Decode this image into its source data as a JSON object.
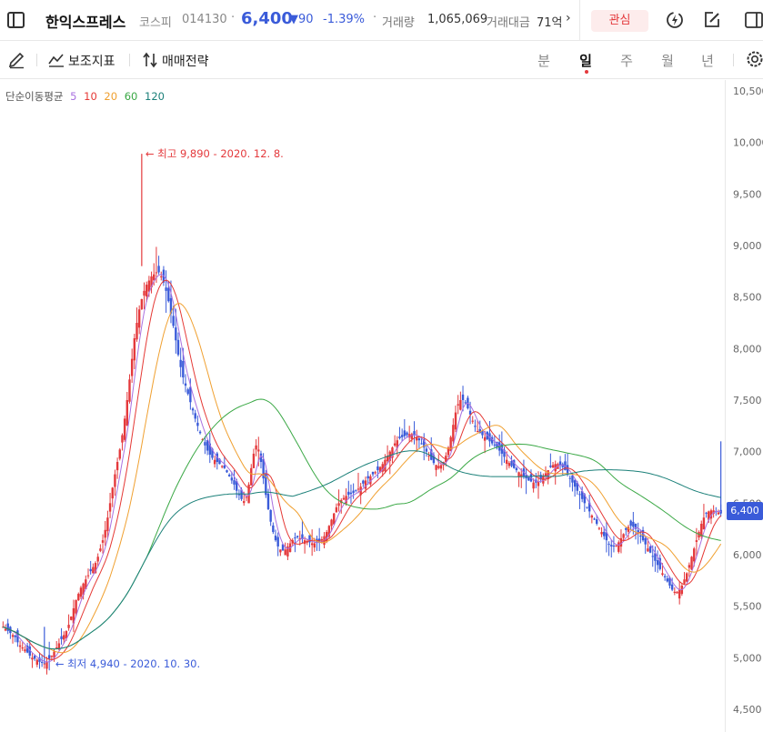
{
  "header": {
    "stock_name": "한익스프레스",
    "market": "코스피",
    "code": "014130",
    "price": "6,400",
    "change": "▼90",
    "change_pct": "-1.39%",
    "volume_label": "거래량",
    "volume_value": "1,065,069",
    "turnover_label": "거래대금",
    "turnover_value": "71억",
    "more_icon": "chevron-right-icon",
    "watch_label": "관심",
    "icons": [
      "sidebar-toggle-icon",
      "lightning-icon",
      "edit-icon",
      "panel-icon"
    ]
  },
  "toolbar": {
    "draw_icon": "pencil-icon",
    "indicator_label": "보조지표",
    "strategy_label": "매매전략",
    "periods": [
      "분",
      "일",
      "주",
      "월",
      "년"
    ],
    "active_period": "일",
    "settings_icon": "gear-icon"
  },
  "colors": {
    "up": "#e4393c",
    "down": "#3a5bd9",
    "ma5": "#a970e0",
    "ma10": "#e53935",
    "ma20": "#f0a030",
    "ma60": "#3aa845",
    "ma120": "#1b8079"
  },
  "chart_data": {
    "type": "candlestick",
    "indicator_label": "단순이동평균",
    "ma_periods": [
      "5",
      "10",
      "20",
      "60",
      "120"
    ],
    "y_ticks": [
      "10,500",
      "10,000",
      "9,500",
      "9,000",
      "8,500",
      "8,000",
      "7,500",
      "7,000",
      "6,500",
      "6,000",
      "5,500",
      "5,000",
      "4,500"
    ],
    "ylim": [
      4450,
      10650
    ],
    "current_price_label": "6,400",
    "current_price": 6400,
    "high_annotation": "최고 9,890 - 2020. 12. 8.",
    "high_value": 9890,
    "low_annotation": "최저 4,940 - 2020. 10. 30.",
    "low_value": 4940,
    "close_series": [
      5300,
      5280,
      5260,
      5240,
      5220,
      5200,
      5150,
      5120,
      5100,
      5080,
      5050,
      5020,
      5000,
      4990,
      4980,
      4960,
      4950,
      4945,
      4960,
      4990,
      5020,
      5060,
      5100,
      5140,
      5180,
      5220,
      5260,
      5320,
      5400,
      5480,
      5560,
      5620,
      5680,
      5720,
      5760,
      5800,
      5840,
      5880,
      5920,
      5980,
      6060,
      6140,
      6240,
      6360,
      6500,
      6650,
      6780,
      6900,
      7020,
      7160,
      7320,
      7500,
      7700,
      7900,
      8100,
      8250,
      8380,
      8480,
      8560,
      8620,
      8660,
      8700,
      8720,
      8740,
      8740,
      8700,
      8640,
      8560,
      8460,
      8340,
      8220,
      8080,
      7940,
      7820,
      7720,
      7640,
      7560,
      7480,
      7400,
      7320,
      7250,
      7180,
      7120,
      7060,
      7010,
      6970,
      6940,
      6920,
      6900,
      6880,
      6860,
      6840,
      6800,
      6760,
      6720,
      6680,
      6620,
      6580,
      6540,
      6520,
      6560,
      6680,
      6840,
      6980,
      7060,
      7020,
      6900,
      6740,
      6580,
      6440,
      6320,
      6220,
      6140,
      6080,
      6050,
      6040,
      6050,
      6080,
      6110,
      6140,
      6160,
      6170,
      6160,
      6150,
      6140,
      6130,
      6120,
      6110,
      6110,
      6120,
      6130,
      6150,
      6180,
      6220,
      6280,
      6340,
      6400,
      6460,
      6500,
      6530,
      6550,
      6570,
      6580,
      6590,
      6600,
      6620,
      6640,
      6660,
      6690,
      6720,
      6740,
      6760,
      6780,
      6800,
      6820,
      6850,
      6880,
      6920,
      6960,
      7000,
      7040,
      7080,
      7110,
      7130,
      7140,
      7150,
      7160,
      7170,
      7170,
      7160,
      7140,
      7110,
      7080,
      7040,
      7000,
      6960,
      6920,
      6890,
      6870,
      6860,
      6870,
      6900,
      6960,
      7040,
      7140,
      7260,
      7380,
      7460,
      7500,
      7500,
      7470,
      7420,
      7360,
      7300,
      7240,
      7200,
      7180,
      7160,
      7140,
      7120,
      7100,
      7080,
      7060,
      7040,
      7010,
      6980,
      6950,
      6920,
      6890,
      6860,
      6840,
      6820,
      6800,
      6780,
      6760,
      6740,
      6720,
      6710,
      6700,
      6700,
      6710,
      6730,
      6760,
      6790,
      6820,
      6850,
      6870,
      6880,
      6880,
      6870,
      6850,
      6820,
      6780,
      6740,
      6700,
      6660,
      6620,
      6580,
      6540,
      6500,
      6460,
      6420,
      6380,
      6340,
      6300,
      6260,
      6220,
      6180,
      6140,
      6100,
      6080,
      6080,
      6090,
      6120,
      6160,
      6200,
      6240,
      6270,
      6280,
      6270,
      6250,
      6220,
      6180,
      6140,
      6100,
      6060,
      6020,
      5980,
      5940,
      5900,
      5860,
      5820,
      5780,
      5740,
      5700,
      5660,
      5640,
      5640,
      5660,
      5700,
      5760,
      5820,
      5900,
      5980,
      6060,
      6140,
      6220,
      6300,
      6360,
      6400,
      6420,
      6430,
      6430,
      6420,
      6410,
      6400
    ]
  }
}
